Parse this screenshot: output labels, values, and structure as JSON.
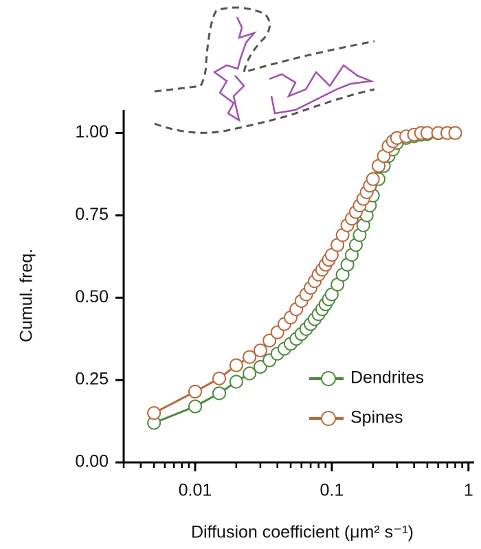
{
  "chart_data": {
    "type": "line",
    "x_label": "Diffusion coefficient (μm² s⁻¹)",
    "y_label": "Cumul. freq.",
    "x": [
      0.005,
      0.01,
      0.015,
      0.02,
      0.025,
      0.03,
      0.035,
      0.04,
      0.045,
      0.05,
      0.055,
      0.06,
      0.065,
      0.07,
      0.075,
      0.08,
      0.085,
      0.09,
      0.095,
      0.1,
      0.11,
      0.12,
      0.13,
      0.14,
      0.15,
      0.16,
      0.17,
      0.18,
      0.19,
      0.2,
      0.22,
      0.24,
      0.26,
      0.28,
      0.3,
      0.35,
      0.4,
      0.45,
      0.5,
      0.6,
      0.7,
      0.8
    ],
    "series": [
      {
        "name": "Dendrites",
        "color": "#4e8a3e",
        "values": [
          0.12,
          0.17,
          0.21,
          0.245,
          0.27,
          0.29,
          0.31,
          0.33,
          0.345,
          0.36,
          0.375,
          0.39,
          0.405,
          0.42,
          0.435,
          0.45,
          0.465,
          0.48,
          0.495,
          0.51,
          0.54,
          0.57,
          0.6,
          0.63,
          0.66,
          0.69,
          0.72,
          0.75,
          0.78,
          0.81,
          0.86,
          0.9,
          0.93,
          0.95,
          0.97,
          0.985,
          0.99,
          0.995,
          0.997,
          0.999,
          1.0,
          1.0
        ]
      },
      {
        "name": "Spines",
        "color": "#b8683c",
        "values": [
          0.15,
          0.215,
          0.255,
          0.295,
          0.32,
          0.34,
          0.37,
          0.395,
          0.42,
          0.44,
          0.465,
          0.49,
          0.51,
          0.53,
          0.55,
          0.57,
          0.585,
          0.6,
          0.615,
          0.63,
          0.66,
          0.69,
          0.72,
          0.74,
          0.76,
          0.78,
          0.8,
          0.82,
          0.84,
          0.86,
          0.9,
          0.93,
          0.96,
          0.975,
          0.985,
          0.99,
          0.995,
          1.0,
          1.0,
          1.0,
          1.0,
          1.0
        ]
      }
    ],
    "xscale": "log",
    "xlim": [
      0.003,
      1.1
    ],
    "xticks": [
      0.01,
      0.1,
      1
    ],
    "xminorticks": [
      0.003,
      0.004,
      0.005,
      0.006,
      0.007,
      0.008,
      0.009,
      0.02,
      0.03,
      0.04,
      0.05,
      0.06,
      0.07,
      0.08,
      0.09,
      0.2,
      0.3,
      0.4,
      0.5,
      0.6,
      0.7,
      0.8,
      0.9
    ],
    "ylim": [
      0,
      1.07
    ],
    "yticks": [
      {
        "value": 0,
        "label": "0.00"
      },
      {
        "value": 0.25,
        "label": "0.25"
      },
      {
        "value": 0.5,
        "label": "0.50"
      },
      {
        "value": 0.75,
        "label": "0.75"
      },
      {
        "value": 1,
        "label": "1.00"
      }
    ],
    "legend": "lower right"
  }
}
